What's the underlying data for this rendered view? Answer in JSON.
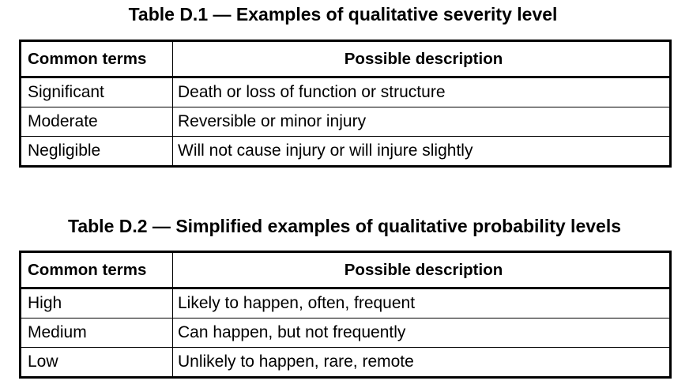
{
  "tables": [
    {
      "caption": "Table D.1 — Examples of qualitative severity level",
      "headers": [
        "Common terms",
        "Possible description"
      ],
      "rows": [
        [
          "Significant",
          "Death or loss of function or structure"
        ],
        [
          "Moderate",
          "Reversible or minor injury"
        ],
        [
          "Negligible",
          "Will not cause injury or will injure slightly"
        ]
      ]
    },
    {
      "caption": "Table D.2 — Simplified examples of qualitative probability levels",
      "headers": [
        "Common terms",
        "Possible description"
      ],
      "rows": [
        [
          "High",
          "Likely to happen, often, frequent"
        ],
        [
          "Medium",
          "Can happen, but not frequently"
        ],
        [
          "Low",
          "Unlikely to happen, rare, remote"
        ]
      ]
    }
  ]
}
